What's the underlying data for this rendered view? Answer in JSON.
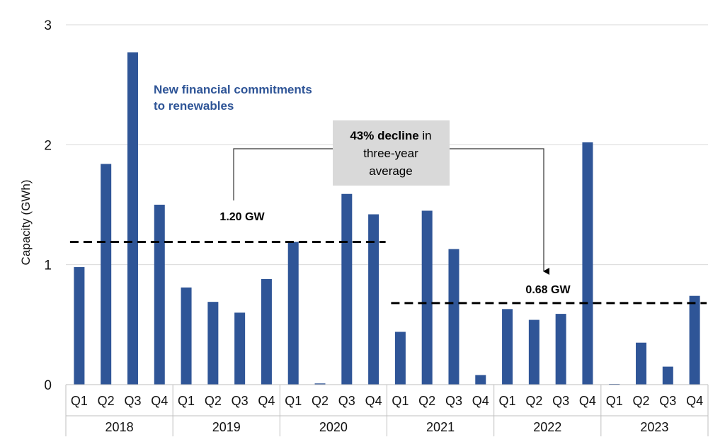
{
  "chart_data": {
    "type": "bar",
    "ylabel": "Capacity (GWh)",
    "ylim": [
      0,
      3
    ],
    "yticks": [
      0,
      1,
      2,
      3
    ],
    "grid": true,
    "bar_color": "#2f5597",
    "groups": [
      {
        "label": "2018",
        "quarters": [
          "Q1",
          "Q2",
          "Q3",
          "Q4"
        ]
      },
      {
        "label": "2019",
        "quarters": [
          "Q1",
          "Q2",
          "Q3",
          "Q4"
        ]
      },
      {
        "label": "2020",
        "quarters": [
          "Q1",
          "Q2",
          "Q3",
          "Q4"
        ]
      },
      {
        "label": "2021",
        "quarters": [
          "Q1",
          "Q2",
          "Q3",
          "Q4"
        ]
      },
      {
        "label": "2022",
        "quarters": [
          "Q1",
          "Q2",
          "Q3",
          "Q4"
        ]
      },
      {
        "label": "2023",
        "quarters": [
          "Q1",
          "Q2",
          "Q3",
          "Q4"
        ]
      }
    ],
    "values": [
      0.98,
      1.84,
      2.77,
      1.5,
      0.81,
      0.69,
      0.6,
      0.88,
      1.19,
      0.01,
      1.59,
      1.42,
      0.44,
      1.45,
      1.13,
      0.08,
      0.63,
      0.54,
      0.59,
      2.02,
      0.0,
      0.35,
      0.15,
      0.74
    ],
    "series_label": {
      "line1": "New financial commitments",
      "line2": "to renewables"
    },
    "averages": [
      {
        "label": "1.20 GW",
        "value": 1.19,
        "from_index": 0,
        "to_index": 11
      },
      {
        "label": "0.68 GW",
        "value": 0.68,
        "from_index": 12,
        "to_index": 23
      }
    ],
    "annotation": {
      "bold": "43% decline",
      "line1_rest": " in",
      "line2": "three-year",
      "line3": "average"
    }
  }
}
